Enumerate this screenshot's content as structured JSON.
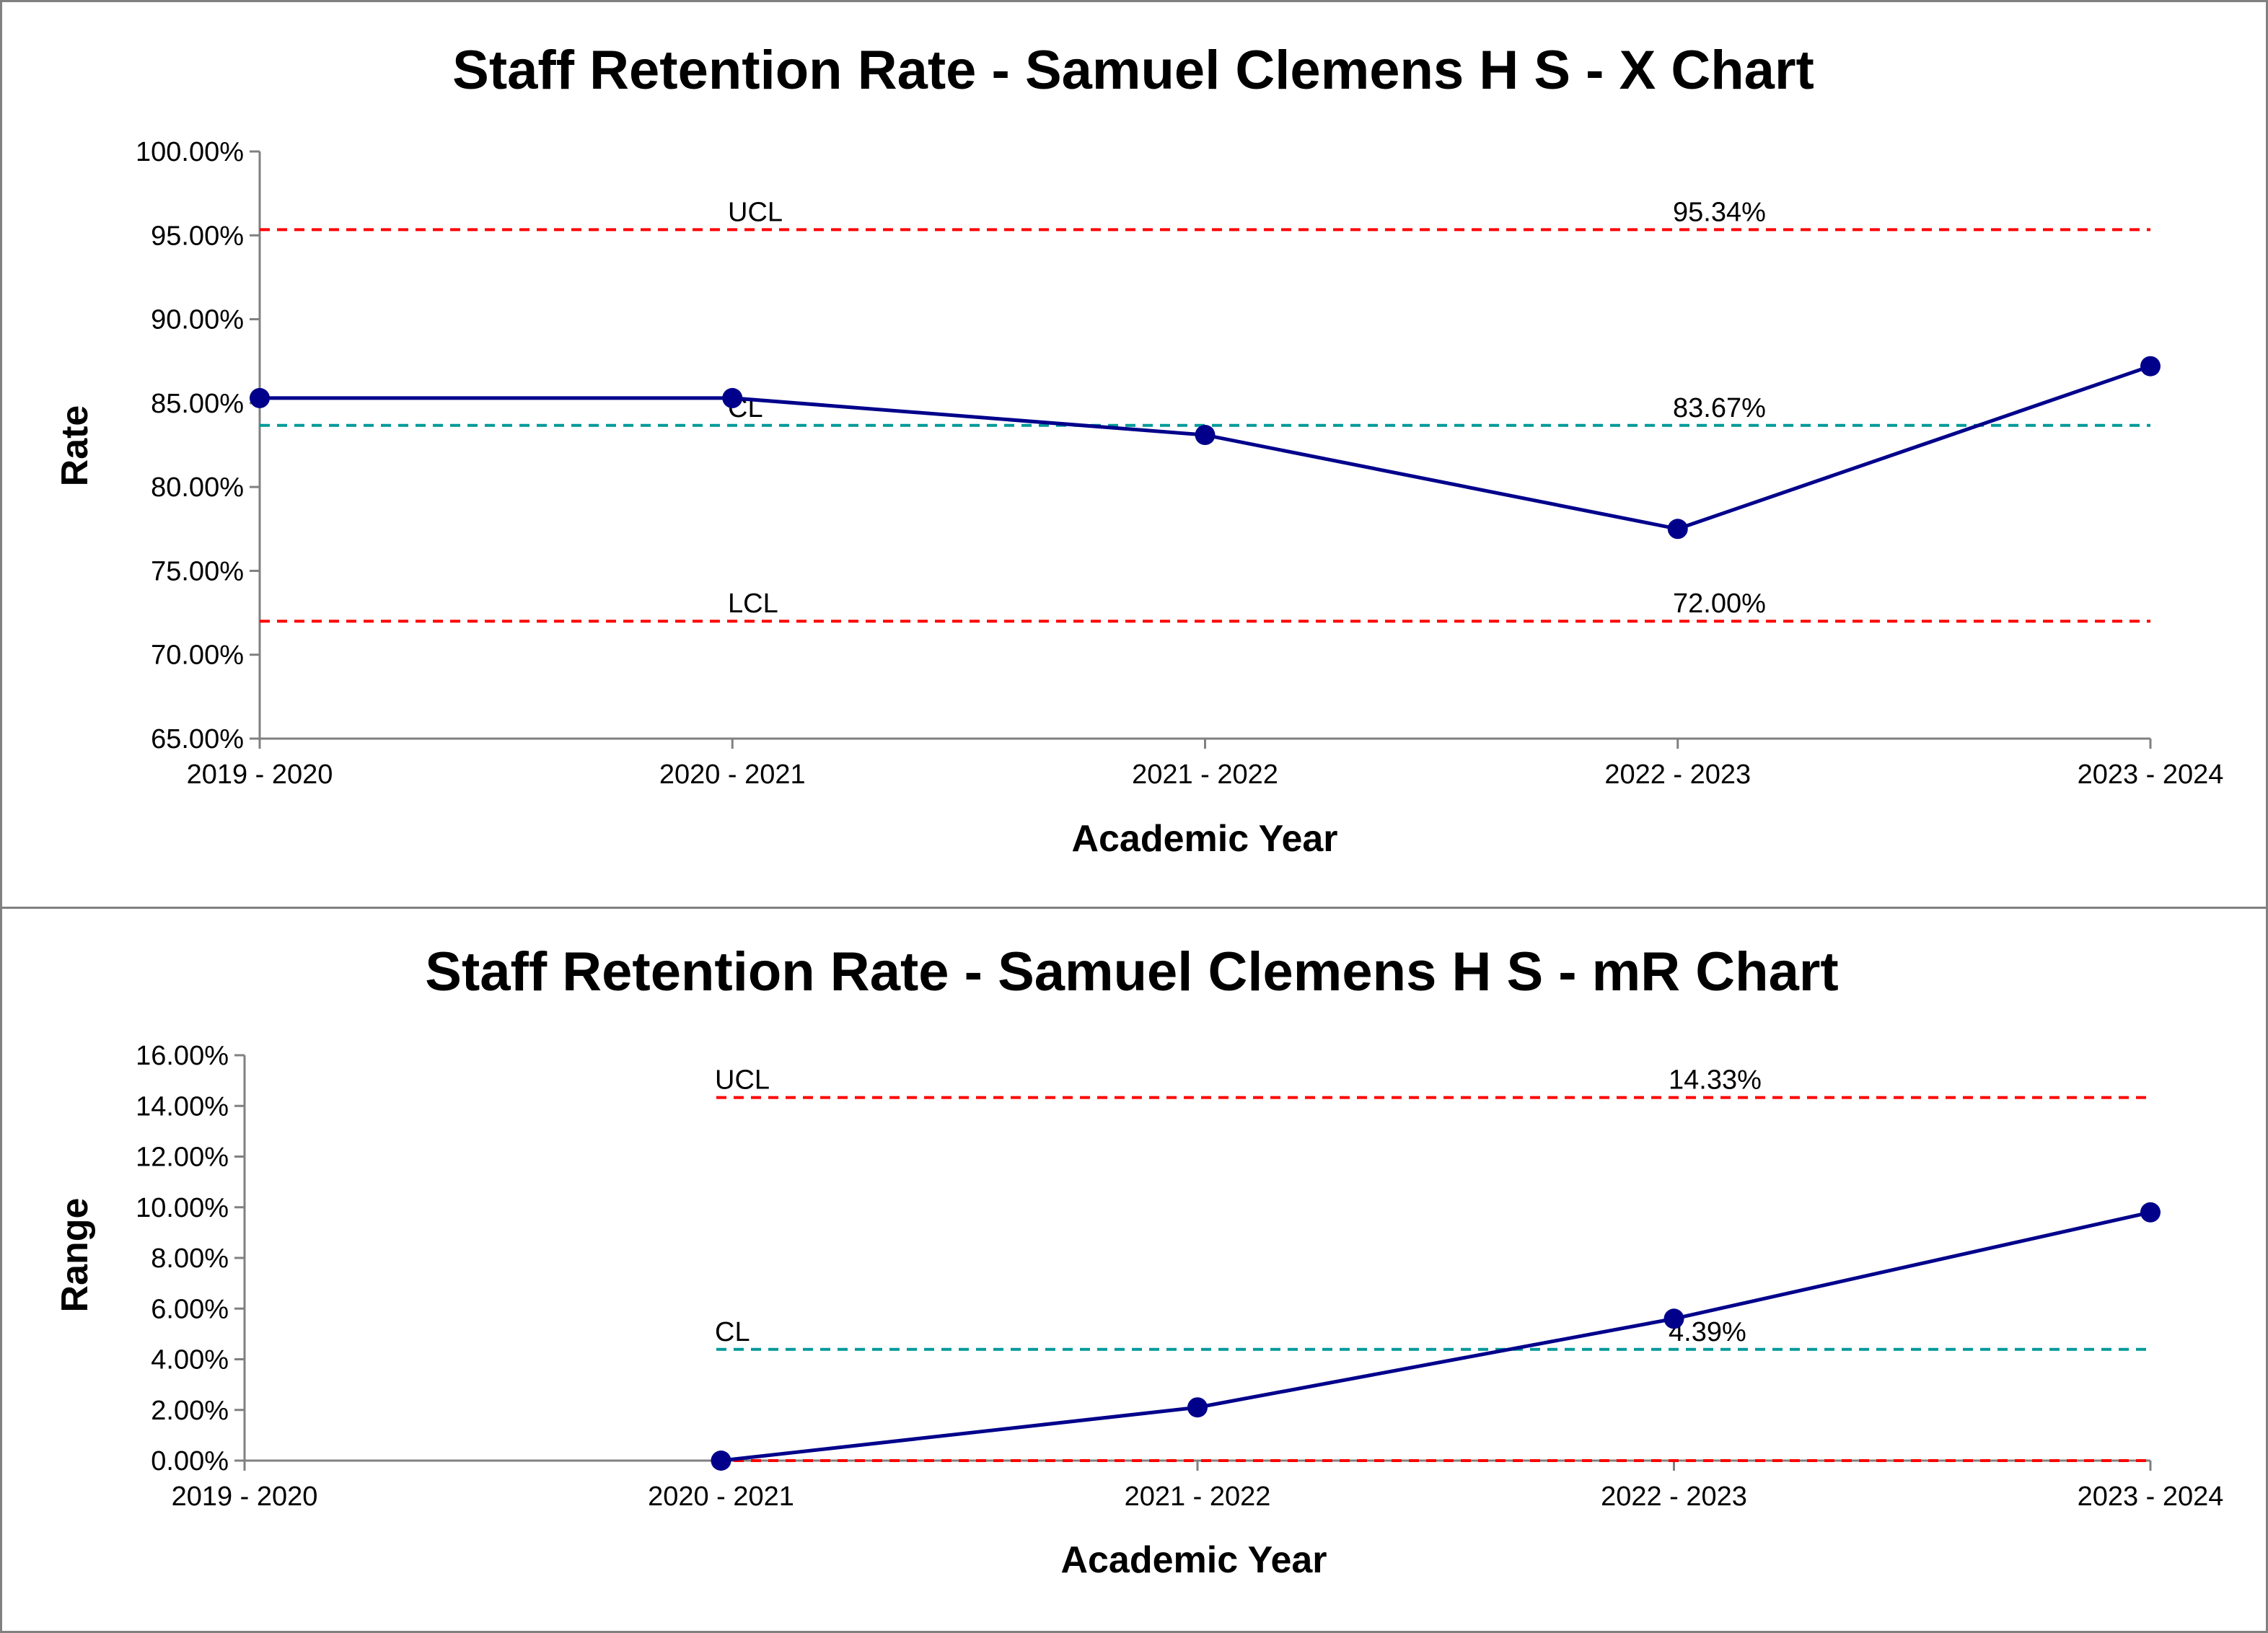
{
  "colors": {
    "series": "#00008b",
    "limit_line": "#ff0000",
    "center_line": "#009999",
    "axis": "#808080",
    "border": "#808080"
  },
  "chart_data": [
    {
      "type": "line",
      "title": "Staff Retention Rate - Samuel Clemens H S - X Chart",
      "xlabel": "Academic Year",
      "ylabel": "Rate",
      "categories": [
        "2019 - 2020",
        "2020 - 2021",
        "2021 - 2022",
        "2022 - 2023",
        "2023 - 2024"
      ],
      "series": [
        {
          "values": [
            85.3,
            85.3,
            83.1,
            77.5,
            87.2
          ]
        }
      ],
      "ylim": [
        65,
        100
      ],
      "yticks": [
        "65.00%",
        "70.00%",
        "75.00%",
        "80.00%",
        "85.00%",
        "90.00%",
        "95.00%",
        "100.00%"
      ],
      "grid": false,
      "control_lines": [
        {
          "label": "UCL",
          "value_label": "95.34%",
          "value": 95.34,
          "kind": "limit"
        },
        {
          "label": "CL",
          "value_label": "83.67%",
          "value": 83.67,
          "kind": "center"
        },
        {
          "label": "LCL",
          "value_label": "72.00%",
          "value": 72.0,
          "kind": "limit"
        }
      ]
    },
    {
      "type": "line",
      "title": "Staff Retention Rate - Samuel Clemens H S - mR Chart",
      "xlabel": "Academic Year",
      "ylabel": "Range",
      "categories": [
        "2019 - 2020",
        "2020 - 2021",
        "2021 - 2022",
        "2022 - 2023",
        "2023 - 2024"
      ],
      "series": [
        {
          "values": [
            null,
            0.0,
            2.1,
            5.6,
            9.8
          ]
        }
      ],
      "ylim": [
        0,
        16
      ],
      "yticks": [
        "0.00%",
        "2.00%",
        "4.00%",
        "6.00%",
        "8.00%",
        "10.00%",
        "12.00%",
        "14.00%",
        "16.00%"
      ],
      "grid": false,
      "control_lines": [
        {
          "label": "UCL",
          "value_label": "14.33%",
          "value": 14.33,
          "kind": "limit"
        },
        {
          "label": "CL",
          "value_label": "4.39%",
          "value": 4.39,
          "kind": "center"
        },
        {
          "label": "",
          "value_label": "",
          "value": 0.0,
          "kind": "limit"
        }
      ]
    }
  ]
}
